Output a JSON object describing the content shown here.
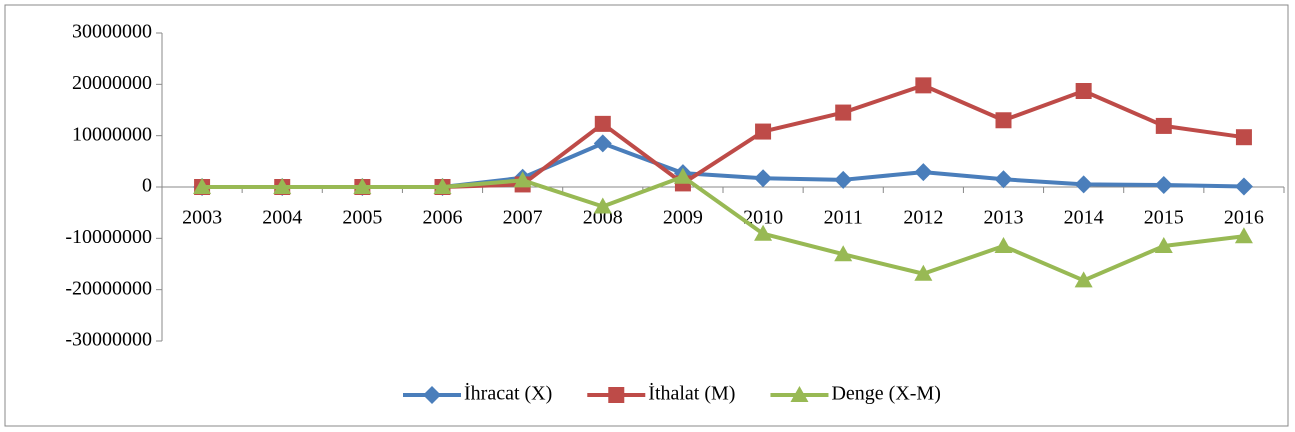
{
  "chart_data": {
    "type": "line",
    "categories": [
      "2003",
      "2004",
      "2005",
      "2006",
      "2007",
      "2008",
      "2009",
      "2010",
      "2011",
      "2012",
      "2013",
      "2014",
      "2015",
      "2016"
    ],
    "series": [
      {
        "name": "İhracat (X)",
        "color": "#4a7ebb",
        "marker": "diamond",
        "values": [
          0,
          0,
          0,
          0,
          1800000,
          8500000,
          2700000,
          1700000,
          1400000,
          2900000,
          1500000,
          500000,
          400000,
          100000
        ]
      },
      {
        "name": "İthalat (M)",
        "color": "#be4b48",
        "marker": "square",
        "values": [
          0,
          0,
          0,
          0,
          500000,
          12300000,
          700000,
          10800000,
          14500000,
          19800000,
          13000000,
          18700000,
          11900000,
          9700000
        ]
      },
      {
        "name": "Denge (X-M)",
        "color": "#98b954",
        "marker": "triangle",
        "values": [
          0,
          0,
          0,
          0,
          1300000,
          -3800000,
          2000000,
          -9100000,
          -13100000,
          -16900000,
          -11500000,
          -18200000,
          -11500000,
          -9600000
        ]
      }
    ],
    "ylim": [
      -30000000,
      30000000
    ],
    "yticks": [
      -30000000,
      -20000000,
      -10000000,
      0,
      10000000,
      20000000,
      30000000
    ],
    "legend": "bottom"
  }
}
